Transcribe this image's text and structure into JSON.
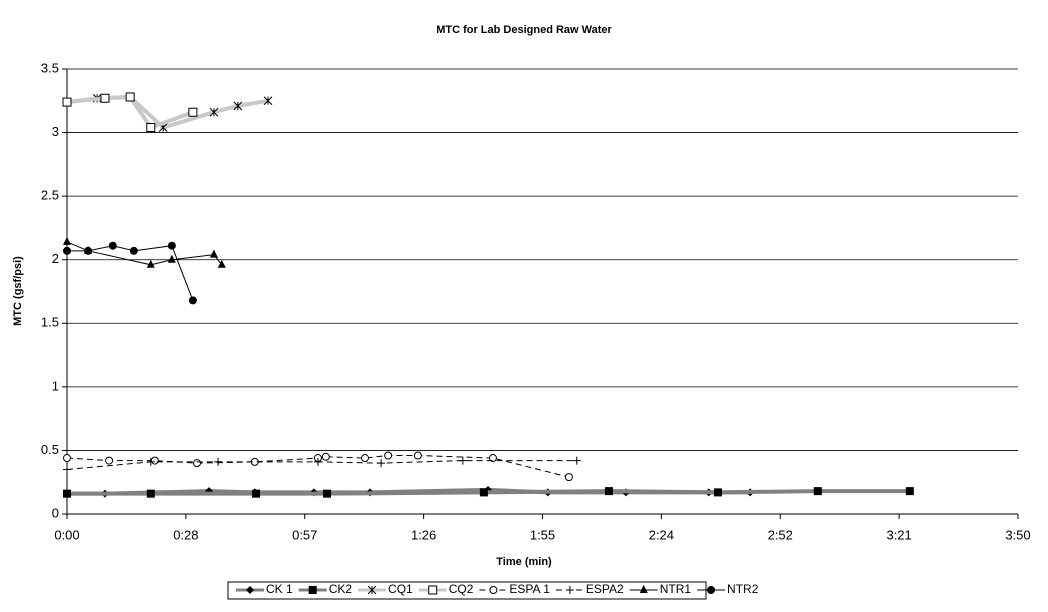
{
  "chart_data": {
    "type": "line",
    "title": "MTC for Lab Designed Raw Water",
    "x_label": "Time (min)",
    "y_label": "MTC (gsf/psi)",
    "xlim": [
      0,
      230.4
    ],
    "xticks": [
      {
        "value": 0,
        "label": "0:00"
      },
      {
        "value": 28.8,
        "label": "0:28"
      },
      {
        "value": 57.6,
        "label": "0:57"
      },
      {
        "value": 86.4,
        "label": "1:26"
      },
      {
        "value": 115.2,
        "label": "1:55"
      },
      {
        "value": 144,
        "label": "2:24"
      },
      {
        "value": 172.8,
        "label": "2:52"
      },
      {
        "value": 201.6,
        "label": "3:21"
      },
      {
        "value": 230.4,
        "label": "3:50"
      }
    ],
    "ylim": [
      0,
      3.5
    ],
    "yticks": [
      0,
      0.5,
      1,
      1.5,
      2,
      2.5,
      3,
      3.5
    ],
    "grid": true,
    "legend": "bottom",
    "series": [
      {
        "name": "CK 1",
        "color": "#808080",
        "marker": "diamond",
        "dash": "solid",
        "x": [
          0,
          9.2,
          34.4,
          45.5,
          59.8,
          73.4,
          102,
          116.5,
          135.4,
          155.5,
          165.5
        ],
        "values": [
          0.16,
          0.16,
          0.18,
          0.17,
          0.17,
          0.17,
          0.19,
          0.17,
          0.17,
          0.17,
          0.17
        ]
      },
      {
        "name": "CK2",
        "color": "#808080",
        "marker": "square",
        "dash": "solid",
        "x": [
          0,
          20.3,
          45.8,
          63.0,
          101,
          131.3,
          157.7,
          181.9,
          204.2
        ],
        "values": [
          0.16,
          0.16,
          0.16,
          0.16,
          0.17,
          0.18,
          0.17,
          0.18,
          0.18
        ]
      },
      {
        "name": "CQ1",
        "color": "#c8c8c8",
        "marker": "asterisk",
        "dash": "solid",
        "x": [
          0,
          7.3,
          15.3,
          23.3,
          35.6,
          41.4,
          48.7
        ],
        "values": [
          3.24,
          3.27,
          3.28,
          3.04,
          3.16,
          3.21,
          3.25
        ]
      },
      {
        "name": "CQ2",
        "color": "#c8c8c8",
        "marker": "open-square",
        "dash": "solid",
        "x": [
          0,
          9.2,
          15.3,
          20.3,
          30.5
        ],
        "values": [
          3.24,
          3.27,
          3.28,
          3.04,
          3.16
        ]
      },
      {
        "name": "ESPA 1",
        "color": "#000000",
        "marker": "open-circle",
        "dash": "dashed",
        "x": [
          0,
          10.2,
          21.3,
          31.5,
          45.5,
          60.8,
          62.7,
          72.2,
          77.8,
          85,
          103.2,
          121.6
        ],
        "values": [
          0.44,
          0.42,
          0.42,
          0.4,
          0.41,
          0.44,
          0.45,
          0.44,
          0.46,
          0.46,
          0.44,
          0.29
        ]
      },
      {
        "name": "ESPA2",
        "color": "#000000",
        "marker": "plus",
        "dash": "dashed",
        "x": [
          0,
          20.3,
          36.6,
          60.8,
          76.1,
          95.9,
          123.5
        ],
        "values": [
          0.35,
          0.41,
          0.41,
          0.41,
          0.4,
          0.42,
          0.42
        ]
      },
      {
        "name": "NTR1",
        "color": "#000000",
        "marker": "triangle",
        "dash": "solid",
        "x": [
          0,
          5.1,
          20.3,
          25.4,
          35.6,
          37.5
        ],
        "values": [
          2.14,
          2.07,
          1.96,
          2.0,
          2.04,
          1.96
        ]
      },
      {
        "name": "NTR2",
        "color": "#000000",
        "marker": "circle",
        "dash": "solid",
        "x": [
          0,
          5.1,
          11.1,
          16.2,
          25.4,
          30.5
        ],
        "values": [
          2.07,
          2.07,
          2.11,
          2.07,
          2.11,
          1.68
        ]
      }
    ]
  }
}
